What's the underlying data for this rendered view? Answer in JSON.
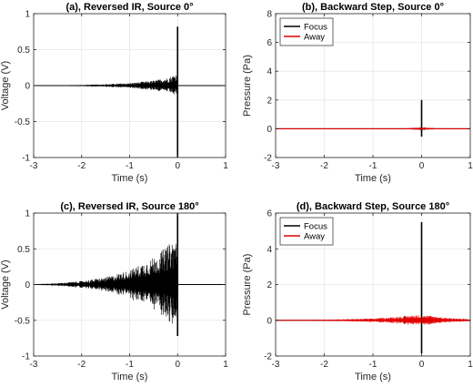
{
  "chart_data": [
    {
      "type": "line",
      "title": "(a), Reversed IR, Source 0°",
      "xlabel": "Time (s)",
      "ylabel": "Voltage (V)",
      "xlim": [
        -3,
        1
      ],
      "ylim": [
        -1,
        1
      ],
      "xticks": [
        "-3",
        "-2",
        "-1",
        "0",
        "1"
      ],
      "yticks": [
        "1",
        "0.5",
        "0",
        "-0.5",
        "-1"
      ],
      "grid": true,
      "legend": null,
      "series": [
        {
          "color": "#000000",
          "envelope": [
            [
              -3,
              0.003
            ],
            [
              -2.5,
              0.006
            ],
            [
              -2,
              0.01
            ],
            [
              -1.5,
              0.02
            ],
            [
              -1,
              0.035
            ],
            [
              -0.5,
              0.07
            ],
            [
              -0.2,
              0.11
            ],
            [
              -0.05,
              0.16
            ],
            [
              -0.01,
              0.2
            ]
          ],
          "spike": {
            "x": 0,
            "max": 0.82,
            "min": -1.0
          }
        }
      ]
    },
    {
      "type": "line",
      "title": "(b), Backward Step, Source 0°",
      "xlabel": "Time (s)",
      "ylabel": "Pressure (Pa)",
      "xlim": [
        -3,
        1
      ],
      "ylim": [
        -2,
        8
      ],
      "xticks": [
        "-3",
        "-2",
        "-1",
        "0",
        "1"
      ],
      "yticks": [
        "8",
        "6",
        "4",
        "2",
        "0",
        "-2"
      ],
      "grid": true,
      "legend": "top-left",
      "series": [
        {
          "name": "Focus",
          "color": "#000000",
          "envelope": [
            [
              -3,
              0.005
            ],
            [
              -1,
              0.01
            ],
            [
              -0.3,
              0.03
            ],
            [
              -0.05,
              0.08
            ],
            [
              0,
              0.1
            ],
            [
              0.3,
              0.02
            ],
            [
              1,
              0.005
            ]
          ],
          "spike": {
            "x": 0,
            "max": 2.0,
            "min": -0.55
          }
        },
        {
          "name": "Away",
          "color": "#e00000",
          "envelope": [
            [
              -3,
              0.008
            ],
            [
              -1,
              0.015
            ],
            [
              -0.3,
              0.04
            ],
            [
              -0.05,
              0.09
            ],
            [
              0,
              0.11
            ],
            [
              0.3,
              0.04
            ],
            [
              1,
              0.01
            ]
          ],
          "spike": null
        }
      ]
    },
    {
      "type": "line",
      "title": "(c), Reversed IR, Source 180°",
      "xlabel": "Time (s)",
      "ylabel": "Voltage (V)",
      "xlim": [
        -3,
        1
      ],
      "ylim": [
        -1,
        1
      ],
      "xticks": [
        "-3",
        "-2",
        "-1",
        "0",
        "1"
      ],
      "yticks": [
        "1",
        "0.5",
        "0",
        "-0.5",
        "-1"
      ],
      "grid": true,
      "legend": null,
      "series": [
        {
          "color": "#000000",
          "envelope": [
            [
              -3,
              0.005
            ],
            [
              -2.5,
              0.02
            ],
            [
              -2,
              0.05
            ],
            [
              -1.5,
              0.1
            ],
            [
              -1,
              0.2
            ],
            [
              -0.5,
              0.38
            ],
            [
              -0.2,
              0.55
            ],
            [
              -0.05,
              0.65
            ],
            [
              -0.01,
              0.7
            ]
          ],
          "spike": {
            "x": 0,
            "max": 1.0,
            "min": -0.72
          }
        }
      ]
    },
    {
      "type": "line",
      "title": "(d), Backward Step, Source 180°",
      "xlabel": "Time (s)",
      "ylabel": "Pressure (Pa)",
      "xlim": [
        -3,
        1
      ],
      "ylim": [
        -2,
        6
      ],
      "xticks": [
        "-3",
        "-2",
        "-1",
        "0",
        "1"
      ],
      "yticks": [
        "6",
        "4",
        "2",
        "0",
        "-2"
      ],
      "grid": true,
      "legend": "top-left",
      "series": [
        {
          "name": "Focus",
          "color": "#000000",
          "envelope": [
            [
              -3,
              0.01
            ],
            [
              -1,
              0.03
            ],
            [
              -0.3,
              0.08
            ],
            [
              0,
              0.15
            ],
            [
              0.3,
              0.05
            ],
            [
              1,
              0.01
            ]
          ],
          "spike": {
            "x": 0,
            "max": 5.5,
            "min": -1.85
          }
        },
        {
          "name": "Away",
          "color": "#e00000",
          "envelope": [
            [
              -3,
              0.02
            ],
            [
              -2,
              0.04
            ],
            [
              -1,
              0.1
            ],
            [
              -0.5,
              0.2
            ],
            [
              -0.2,
              0.28
            ],
            [
              0,
              0.3
            ],
            [
              0.2,
              0.25
            ],
            [
              0.5,
              0.15
            ],
            [
              1,
              0.06
            ]
          ],
          "spike": null
        }
      ]
    }
  ]
}
